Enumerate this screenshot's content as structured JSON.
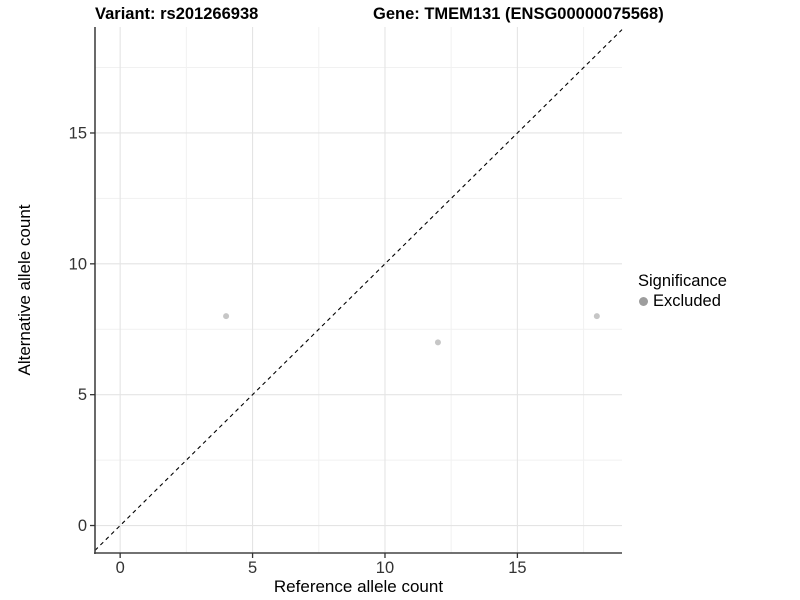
{
  "chart_data": {
    "type": "scatter",
    "titles": {
      "left": "Variant: rs201266938",
      "right": "Gene: TMEM131 (ENSG00000075568)"
    },
    "xlabel": "Reference allele count",
    "ylabel": "Alternative allele count",
    "xlim": [
      -0.95,
      18.95
    ],
    "ylim": [
      -1.05,
      19.05
    ],
    "x_ticks": [
      0,
      5,
      10,
      15
    ],
    "y_ticks": [
      0,
      5,
      10,
      15
    ],
    "x_minor": [
      2.5,
      7.5,
      12.5,
      17.5
    ],
    "y_minor": [
      2.5,
      7.5,
      12.5,
      17.5
    ],
    "grid": "major+minor",
    "reference_line": {
      "type": "identity",
      "slope": 1,
      "intercept": 0,
      "style": "dashed",
      "color": "#000000"
    },
    "series": [
      {
        "name": "Excluded",
        "marker": "circle",
        "color": "#c6c6c6",
        "points": [
          [
            4,
            8
          ],
          [
            12,
            7
          ],
          [
            18,
            8
          ]
        ]
      }
    ],
    "legend": {
      "title": "Significance",
      "position": "right",
      "entries": [
        {
          "label": "Excluded",
          "color": "#9d9d9d"
        }
      ]
    },
    "colors": {
      "background": "#ffffff",
      "grid_major": "#e4e4e4",
      "grid_minor": "#f1f1f1",
      "axis_line": "#444444",
      "tick_mark": "#333333",
      "tick_label": "#333333",
      "title": "#000000"
    }
  }
}
